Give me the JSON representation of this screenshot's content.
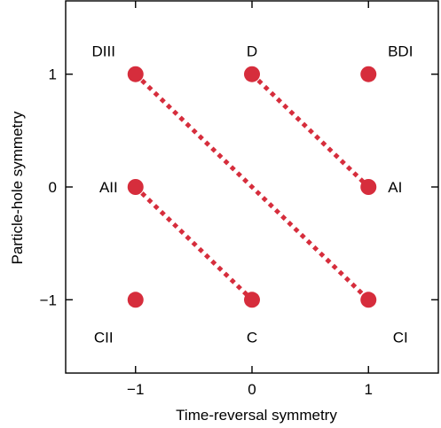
{
  "chart_data": {
    "type": "scatter",
    "title": "",
    "xlabel": "Time-reversal symmetry",
    "ylabel": "Particle-hole symmetry",
    "xlim": [
      -1.6,
      1.6
    ],
    "ylim": [
      -1.65,
      1.65
    ],
    "xticks": [
      -1,
      0,
      1
    ],
    "yticks": [
      -1,
      0,
      1
    ],
    "xtick_labels": [
      "−1",
      "0",
      "1"
    ],
    "ytick_labels": [
      "−1",
      "0",
      "1"
    ],
    "grid": false,
    "marker_color": "#d62d3c",
    "link_color": "#d62d3c",
    "points": [
      {
        "label": "DIII",
        "x": -1,
        "y": 1
      },
      {
        "label": "D",
        "x": 0,
        "y": 1
      },
      {
        "label": "BDI",
        "x": 1,
        "y": 1
      },
      {
        "label": "AII",
        "x": -1,
        "y": 0
      },
      {
        "label": "AI",
        "x": 1,
        "y": 0
      },
      {
        "label": "CII",
        "x": -1,
        "y": -1
      },
      {
        "label": "C",
        "x": 0,
        "y": -1
      },
      {
        "label": "CI",
        "x": 1,
        "y": -1
      }
    ],
    "links": [
      {
        "from": [
          -1,
          1
        ],
        "to": [
          1,
          -1
        ]
      },
      {
        "from": [
          0,
          1
        ],
        "to": [
          1,
          0
        ]
      },
      {
        "from": [
          -1,
          0
        ],
        "to": [
          0,
          -1
        ]
      }
    ]
  }
}
